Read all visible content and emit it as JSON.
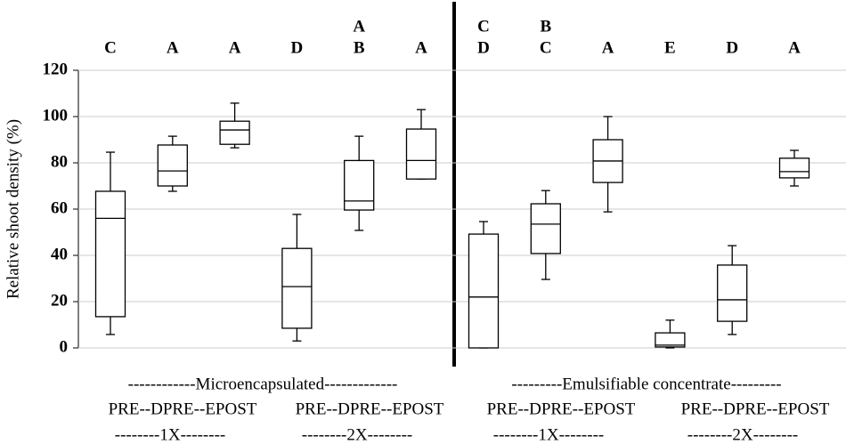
{
  "chart_data": {
    "type": "box",
    "y_label": "Relative shoot density (%)",
    "ylim": [
      0,
      120
    ],
    "yticks": [
      0,
      20,
      40,
      60,
      80,
      100,
      120
    ],
    "grid": true,
    "boxes": [
      {
        "whisker_low": 5.8,
        "q1": 13.5,
        "median": 56,
        "q3": 67.7,
        "whisker_high": 84.6,
        "letters": [
          "C"
        ]
      },
      {
        "whisker_low": 67.7,
        "q1": 70,
        "median": 76.5,
        "q3": 87.7,
        "whisker_high": 91.5,
        "letters": [
          "A"
        ]
      },
      {
        "whisker_low": 86.5,
        "q1": 88,
        "median": 94.2,
        "q3": 98,
        "whisker_high": 105.8,
        "letters": [
          "A"
        ]
      },
      {
        "whisker_low": 3,
        "q1": 8.5,
        "median": 26.5,
        "q3": 43,
        "whisker_high": 57.7,
        "letters": [
          "D"
        ]
      },
      {
        "whisker_low": 50.8,
        "q1": 59.6,
        "median": 63.5,
        "q3": 81,
        "whisker_high": 91.5,
        "letters": [
          "A",
          "B"
        ]
      },
      {
        "whisker_low": 73,
        "q1": 73,
        "median": 81,
        "q3": 94.6,
        "whisker_high": 103,
        "letters": [
          "A"
        ]
      },
      {
        "whisker_low": 0,
        "q1": 0,
        "median": 22,
        "q3": 49.2,
        "whisker_high": 54.6,
        "letters": [
          "C",
          "D"
        ]
      },
      {
        "whisker_low": 29.6,
        "q1": 40.8,
        "median": 53.5,
        "q3": 62.3,
        "whisker_high": 68,
        "letters": [
          "B",
          "C"
        ]
      },
      {
        "whisker_low": 58.8,
        "q1": 71.5,
        "median": 80.8,
        "q3": 90,
        "whisker_high": 100,
        "letters": [
          "A"
        ]
      },
      {
        "whisker_low": 0,
        "q1": 0.4,
        "median": 1.2,
        "q3": 6.5,
        "whisker_high": 12,
        "letters": [
          "E"
        ]
      },
      {
        "whisker_low": 5.8,
        "q1": 11.5,
        "median": 20.8,
        "q3": 35.8,
        "whisker_high": 44.2,
        "letters": [
          "D"
        ]
      },
      {
        "whisker_low": 70,
        "q1": 73.5,
        "median": 76.2,
        "q3": 82,
        "whisker_high": 85.4,
        "letters": [
          "A"
        ]
      }
    ],
    "groups": [
      "------------Microencapsulated-------------",
      "---------Emulsifiable  concentrate---------"
    ],
    "subgroups": [
      {
        "label": "PRE--DPRE--EPOST",
        "dose": "--------1X--------"
      },
      {
        "label": "PRE--DPRE--EPOST",
        "dose": "--------2X--------"
      },
      {
        "label": "PRE--DPRE--EPOST",
        "dose": "--------1X--------"
      },
      {
        "label": "PRE--DPRE--EPOST",
        "dose": "--------2X--------"
      }
    ]
  }
}
